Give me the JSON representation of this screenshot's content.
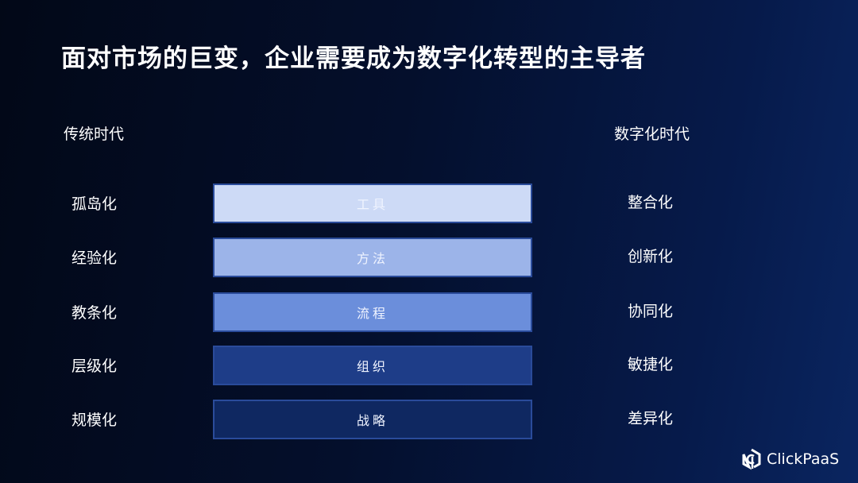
{
  "title": "面对市场的巨变，企业需要成为数字化转型的主导者",
  "left_header": "传统时代",
  "right_header": "数字化时代",
  "rows": [
    {
      "left": "孤岛化",
      "bar": "工具",
      "right": "整合化",
      "color": "#cddaf6"
    },
    {
      "left": "经验化",
      "bar": "方法",
      "right": "创新化",
      "color": "#9cb4e9"
    },
    {
      "left": "教条化",
      "bar": "流程",
      "right": "协同化",
      "color": "#6b8edb"
    },
    {
      "left": "层级化",
      "bar": "组织",
      "right": "敏捷化",
      "color": "#1e3d88"
    },
    {
      "left": "规模化",
      "bar": "战略",
      "right": "差异化",
      "color": "#0f2861"
    }
  ],
  "logo": {
    "text": "ClickPaaS",
    "icon": "clickpaas-hexagon-icon"
  }
}
